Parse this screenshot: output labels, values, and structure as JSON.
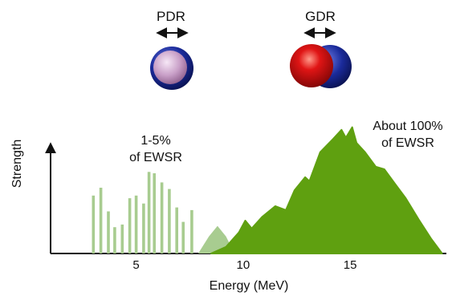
{
  "modes": {
    "pdr": {
      "label": "PDR"
    },
    "gdr": {
      "label": "GDR"
    }
  },
  "labels": {
    "pdr_fraction_line1": "1-5%",
    "pdr_fraction_line2": "of EWSR",
    "gdr_fraction_line1": "About 100%",
    "gdr_fraction_line2": "of EWSR"
  },
  "colors": {
    "gdr_fill": "#5fa010",
    "pdr_bars": "#a8cc90",
    "pdr_peak": "#a8cc90",
    "proton_sphere": "#cc1010",
    "neutron_sphere": "#1a2a9a",
    "core_pdr": "#c9a0c8"
  },
  "chart_data": {
    "type": "area",
    "xlabel": "Energy (MeV)",
    "ylabel": "Strength",
    "xlim": [
      1,
      19.5
    ],
    "ylim": [
      0,
      1
    ],
    "x_ticks": [
      5,
      10,
      15
    ],
    "pdr_bars": {
      "x": [
        3.0,
        3.35,
        3.7,
        4.0,
        4.35,
        4.7,
        5.0,
        5.35,
        5.6,
        5.85,
        6.2,
        6.55,
        6.9,
        7.2,
        7.6
      ],
      "values": [
        0.44,
        0.5,
        0.32,
        0.2,
        0.22,
        0.42,
        0.44,
        0.38,
        0.62,
        0.61,
        0.54,
        0.49,
        0.35,
        0.24,
        0.33
      ]
    },
    "pdr_peak": {
      "x": [
        7.9,
        8.4,
        8.8,
        9.2,
        9.6
      ],
      "values": [
        0,
        0.13,
        0.21,
        0.13,
        0
      ]
    },
    "gdr_curve": {
      "x": [
        8.5,
        9.2,
        9.8,
        10.1,
        10.4,
        10.9,
        11.5,
        12.0,
        12.4,
        12.9,
        13.1,
        13.6,
        14.2,
        14.6,
        14.8,
        15.1,
        15.3,
        15.7,
        16.2,
        16.6,
        17.1,
        17.6,
        18.2,
        18.8,
        19.3
      ],
      "values": [
        0,
        0.05,
        0.16,
        0.25,
        0.19,
        0.28,
        0.36,
        0.33,
        0.48,
        0.58,
        0.55,
        0.77,
        0.87,
        0.94,
        0.88,
        0.96,
        0.84,
        0.77,
        0.66,
        0.64,
        0.53,
        0.42,
        0.26,
        0.11,
        0
      ]
    }
  }
}
